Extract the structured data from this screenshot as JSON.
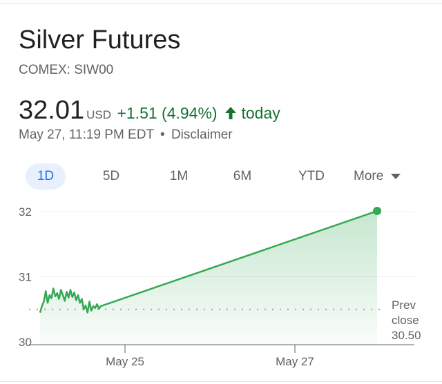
{
  "quote": {
    "title": "Silver Futures",
    "ticker": "COMEX: SIW00",
    "price": "32.01",
    "currency": "USD",
    "change": "+1.51 (4.94%)",
    "direction_icon": "arrow-up-icon",
    "today": "today",
    "timestamp": "May 27, 11:19 PM EDT",
    "separator": "•",
    "disclaimer": "Disclaimer"
  },
  "tabs": [
    {
      "label": "1D",
      "active": true
    },
    {
      "label": "5D",
      "active": false
    },
    {
      "label": "1M",
      "active": false
    },
    {
      "label": "6M",
      "active": false
    },
    {
      "label": "YTD",
      "active": false
    },
    {
      "label": "More",
      "active": false
    }
  ],
  "colors": {
    "positive": "#137333",
    "line": "#34a853",
    "active_tab_bg": "#e8f0fe",
    "active_tab_text": "#1a73e8"
  },
  "chart_data": {
    "type": "area",
    "title": "",
    "xlabel": "",
    "ylabel": "",
    "y_ticks": [
      "30",
      "31",
      "32"
    ],
    "ylim": [
      30,
      32
    ],
    "x_ticks": [
      "May 25",
      "May 27"
    ],
    "prev_close_label": [
      "Prev",
      "close",
      "30.50"
    ],
    "prev_close_value": 30.5,
    "series": [
      {
        "values": [
          30.45,
          30.55,
          30.62,
          30.78,
          30.6,
          30.72,
          30.67,
          30.82,
          30.7,
          30.75,
          30.66,
          30.8,
          30.72,
          30.63,
          30.77,
          30.68,
          30.8,
          30.69,
          30.76,
          30.64,
          30.72,
          30.6,
          30.66,
          30.5,
          30.56,
          30.45,
          30.62,
          30.48,
          30.55,
          30.52,
          30.58,
          30.51,
          30.55,
          32.01
        ]
      }
    ]
  }
}
